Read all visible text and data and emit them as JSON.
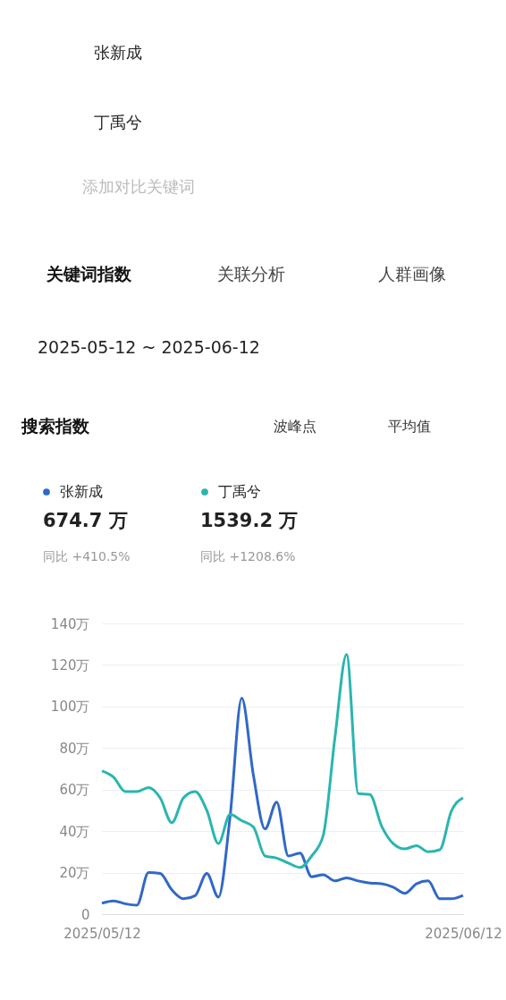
{
  "chart_data": {
    "type": "line",
    "title": "搜索指数",
    "x": [
      "2025-05-12",
      "2025-05-13",
      "2025-05-14",
      "2025-05-15",
      "2025-05-16",
      "2025-05-17",
      "2025-05-18",
      "2025-05-19",
      "2025-05-20",
      "2025-05-21",
      "2025-05-22",
      "2025-05-23",
      "2025-05-24",
      "2025-05-25",
      "2025-05-26",
      "2025-05-27",
      "2025-05-28",
      "2025-05-29",
      "2025-05-30",
      "2025-05-31",
      "2025-06-01",
      "2025-06-02",
      "2025-06-03",
      "2025-06-04",
      "2025-06-05",
      "2025-06-06",
      "2025-06-07",
      "2025-06-08",
      "2025-06-09",
      "2025-06-10",
      "2025-06-11",
      "2025-06-12"
    ],
    "series": [
      {
        "name": "张新成",
        "color": "#3168c8",
        "values": [
          5.3,
          6.4,
          5,
          4.3,
          20,
          19.6,
          11.7,
          7.4,
          8.9,
          19.6,
          8.2,
          47,
          104,
          67,
          41,
          54,
          28,
          29.4,
          18,
          19,
          16,
          17.5,
          16,
          15,
          14.6,
          13,
          10,
          14.6,
          16,
          7.4,
          7.4,
          9
        ]
      },
      {
        "name": "丁禹兮",
        "color": "#2ab5b0",
        "values": [
          69,
          66,
          59,
          59,
          61,
          56,
          44,
          56,
          59,
          50,
          34,
          48,
          45,
          42,
          28,
          27,
          24.6,
          22.5,
          28,
          38,
          85,
          125,
          58,
          57.6,
          42.5,
          34,
          31.4,
          33,
          30,
          31,
          49.7,
          56
        ]
      }
    ],
    "xlim": [
      "2025-05-12",
      "2025-06-12"
    ],
    "xticks": [
      {
        "value": "2025-05-12",
        "label": "2025/05/12"
      },
      {
        "value": "2025-06-12",
        "label": "2025/06/12"
      }
    ],
    "ylim": [
      0,
      140
    ],
    "yticks": [
      0,
      {
        "value": 20,
        "label": "20万"
      },
      {
        "value": 40,
        "label": "40万"
      },
      {
        "value": 60,
        "label": "60万"
      },
      {
        "value": 80,
        "label": "80万"
      },
      {
        "value": 100,
        "label": "100万"
      },
      {
        "value": 120,
        "label": "120万"
      },
      {
        "value": 140,
        "label": "140万"
      }
    ],
    "grid": "y",
    "legend": "top left",
    "annotations": [
      "张新成",
      "丁禹兮",
      "添加对比关键词",
      "关键词指数",
      "关联分析",
      "人群画像",
      "2025-05-12 ~ 2025-06-12",
      "波峰点",
      "平均值",
      "674.7 万",
      "同比 +410.5%",
      "1539.2 万",
      "同比 +1208.6%"
    ]
  }
}
